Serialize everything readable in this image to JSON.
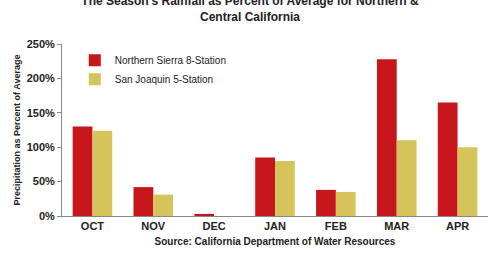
{
  "chart_data": {
    "type": "bar",
    "title": "The Season's Rainfall as Percent of Average for Northern & Central California",
    "xlabel": "Source: California Department of Water Resources",
    "ylabel": "Precipitation as Percent of Average",
    "categories": [
      "OCT",
      "NOV",
      "DEC",
      "JAN",
      "FEB",
      "MAR",
      "APR"
    ],
    "series": [
      {
        "name": "Northern Sierra 8-Station",
        "color": "#c8161d",
        "values": [
          130,
          42,
          3,
          85,
          38,
          228,
          165
        ]
      },
      {
        "name": "San Joaquin 5-Station",
        "color": "#d4c45a",
        "values": [
          124,
          31,
          0,
          80,
          35,
          110,
          100
        ]
      }
    ],
    "ylim": [
      0,
      250
    ],
    "yticks": [
      {
        "value": 0,
        "label": "0%"
      },
      {
        "value": 50,
        "label": "50%"
      },
      {
        "value": 100,
        "label": "100%"
      },
      {
        "value": 150,
        "label": "150%"
      },
      {
        "value": 200,
        "label": "200%"
      },
      {
        "value": 250,
        "label": "250%"
      }
    ],
    "grid": false,
    "legend": "upper left"
  }
}
